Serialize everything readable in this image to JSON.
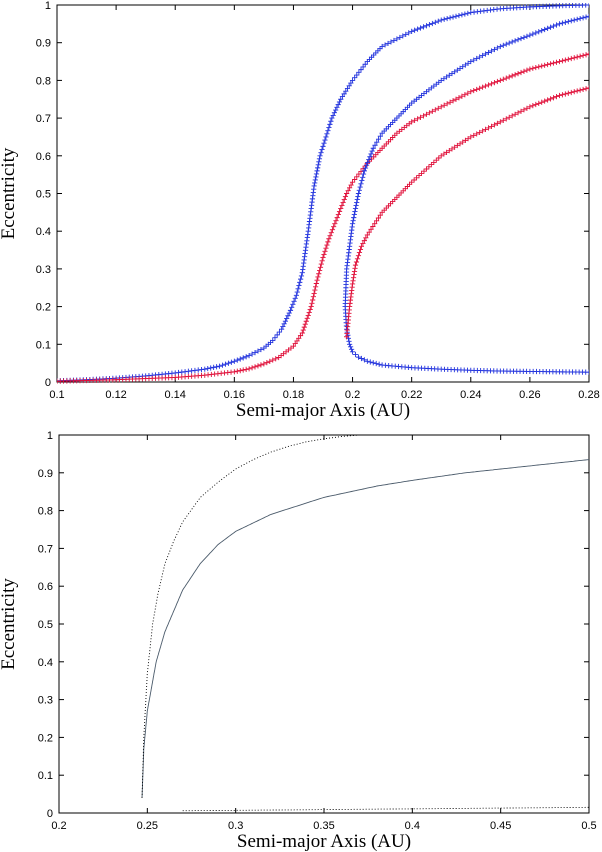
{
  "chart_data": [
    {
      "type": "scatter",
      "xlabel": "Semi-major Axis (AU)",
      "ylabel": "Eccentricity",
      "xlim": [
        0.1,
        0.28
      ],
      "ylim": [
        0,
        1
      ],
      "xticks": [
        "0.1",
        "0.12",
        "0.14",
        "0.16",
        "0.18",
        "0.2",
        "0.22",
        "0.24",
        "0.26",
        "0.28"
      ],
      "yticks": [
        "0",
        "0.1",
        "0.2",
        "0.3",
        "0.4",
        "0.5",
        "0.6",
        "0.7",
        "0.8",
        "0.9",
        "1"
      ],
      "colors": {
        "blue": "#2233dd",
        "red": "#e0103a"
      },
      "series": [
        {
          "color": "#2233dd",
          "marker": "plus",
          "x": [
            0.1,
            0.11,
            0.12,
            0.13,
            0.14,
            0.15,
            0.155,
            0.16,
            0.165,
            0.17,
            0.173,
            0.176,
            0.179,
            0.181,
            0.183,
            0.185,
            0.187,
            0.189,
            0.191,
            0.193,
            0.196,
            0.2,
            0.205,
            0.21,
            0.22,
            0.23,
            0.24,
            0.25,
            0.26,
            0.27,
            0.28
          ],
          "y": [
            0.003,
            0.006,
            0.01,
            0.016,
            0.024,
            0.034,
            0.042,
            0.055,
            0.07,
            0.09,
            0.11,
            0.14,
            0.19,
            0.23,
            0.29,
            0.4,
            0.52,
            0.6,
            0.65,
            0.7,
            0.75,
            0.8,
            0.85,
            0.89,
            0.93,
            0.96,
            0.98,
            0.99,
            0.995,
            0.998,
            1.0
          ]
        },
        {
          "color": "#e0103a",
          "marker": "plus",
          "x": [
            0.1,
            0.12,
            0.14,
            0.15,
            0.16,
            0.165,
            0.17,
            0.175,
            0.18,
            0.183,
            0.186,
            0.188,
            0.19,
            0.192,
            0.194,
            0.196,
            0.198,
            0.2,
            0.205,
            0.21,
            0.215,
            0.22,
            0.23,
            0.24,
            0.25,
            0.26,
            0.27,
            0.28
          ],
          "y": [
            0.002,
            0.006,
            0.012,
            0.018,
            0.027,
            0.035,
            0.048,
            0.065,
            0.095,
            0.13,
            0.2,
            0.27,
            0.33,
            0.38,
            0.42,
            0.46,
            0.5,
            0.53,
            0.58,
            0.62,
            0.66,
            0.69,
            0.73,
            0.77,
            0.8,
            0.83,
            0.85,
            0.87
          ]
        },
        {
          "color": "#2233dd",
          "marker": "plus",
          "x": [
            0.28,
            0.27,
            0.26,
            0.25,
            0.24,
            0.23,
            0.22,
            0.215,
            0.21,
            0.207,
            0.204,
            0.202,
            0.2,
            0.199,
            0.198,
            0.1975,
            0.198,
            0.199,
            0.2,
            0.202,
            0.205,
            0.21,
            0.22,
            0.23,
            0.24,
            0.25,
            0.26,
            0.27,
            0.28
          ],
          "y": [
            0.97,
            0.95,
            0.92,
            0.89,
            0.85,
            0.8,
            0.74,
            0.7,
            0.66,
            0.62,
            0.56,
            0.5,
            0.42,
            0.36,
            0.3,
            0.2,
            0.14,
            0.1,
            0.08,
            0.066,
            0.055,
            0.045,
            0.038,
            0.034,
            0.031,
            0.029,
            0.028,
            0.027,
            0.026
          ]
        },
        {
          "color": "#e0103a",
          "marker": "plus",
          "x": [
            0.28,
            0.27,
            0.26,
            0.25,
            0.24,
            0.23,
            0.22,
            0.215,
            0.21,
            0.205,
            0.203,
            0.201,
            0.2,
            0.199,
            0.198
          ],
          "y": [
            0.78,
            0.76,
            0.73,
            0.69,
            0.65,
            0.6,
            0.53,
            0.49,
            0.45,
            0.39,
            0.36,
            0.31,
            0.26,
            0.2,
            0.12
          ]
        }
      ]
    },
    {
      "type": "line",
      "xlabel": "Semi-major Axis (AU)",
      "ylabel": "Eccentricity",
      "xlim": [
        0.2,
        0.5
      ],
      "ylim": [
        0,
        1
      ],
      "xticks": [
        "0.2",
        "0.25",
        "0.3",
        "0.35",
        "0.4",
        "0.45",
        "0.5"
      ],
      "yticks": [
        "0",
        "0.1",
        "0.2",
        "0.3",
        "0.4",
        "0.5",
        "0.6",
        "0.7",
        "0.8",
        "0.9",
        "1"
      ],
      "colors": {
        "solid": "#4a5a6a",
        "dotted": "#000000"
      },
      "series": [
        {
          "style": "solid",
          "color": "#4a5a6a",
          "x": [
            0.247,
            0.248,
            0.25,
            0.255,
            0.26,
            0.27,
            0.28,
            0.29,
            0.3,
            0.32,
            0.35,
            0.38,
            0.4,
            0.43,
            0.46,
            0.5
          ],
          "y": [
            0.04,
            0.17,
            0.27,
            0.4,
            0.48,
            0.59,
            0.66,
            0.71,
            0.745,
            0.79,
            0.835,
            0.865,
            0.88,
            0.9,
            0.915,
            0.935
          ]
        },
        {
          "style": "dotted",
          "color": "#000000",
          "x": [
            0.247,
            0.248,
            0.25,
            0.253,
            0.256,
            0.26,
            0.265,
            0.27,
            0.28,
            0.29,
            0.3,
            0.31,
            0.32,
            0.33,
            0.34,
            0.35,
            0.36,
            0.37
          ],
          "y": [
            0.04,
            0.2,
            0.37,
            0.5,
            0.58,
            0.66,
            0.72,
            0.77,
            0.835,
            0.875,
            0.91,
            0.935,
            0.955,
            0.97,
            0.982,
            0.99,
            0.996,
            1.0
          ]
        },
        {
          "style": "dotted",
          "color": "#000000",
          "x": [
            0.27,
            0.3,
            0.35,
            0.4,
            0.45,
            0.5
          ],
          "y": [
            0.006,
            0.007,
            0.009,
            0.011,
            0.013,
            0.015
          ]
        }
      ]
    }
  ]
}
